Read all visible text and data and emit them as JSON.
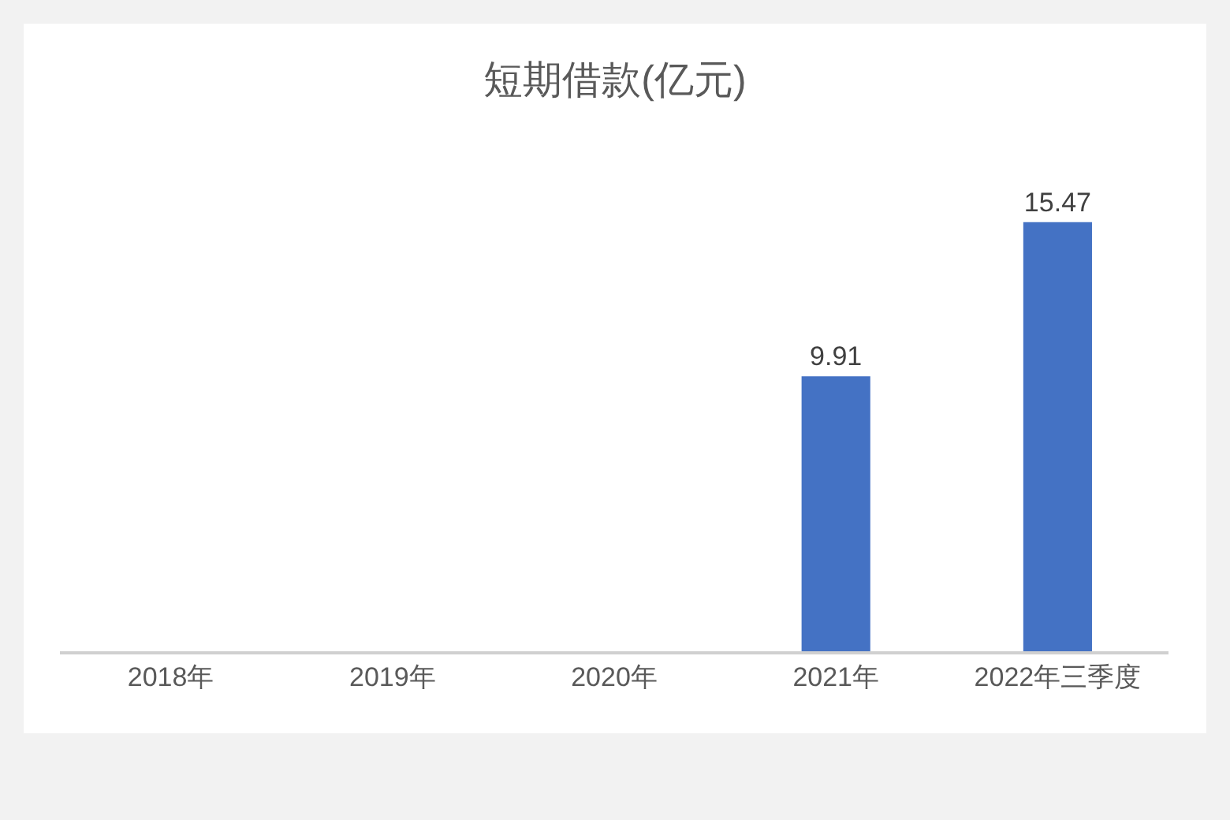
{
  "chart_data": {
    "type": "bar",
    "title": "短期借款(亿元)",
    "categories": [
      "2018年",
      "2019年",
      "2020年",
      "2021年",
      "2022年三季度"
    ],
    "values": [
      null,
      null,
      null,
      9.91,
      15.47
    ],
    "color": "#4472c4",
    "data_labels": true,
    "legend": false,
    "tick_labels": "x"
  }
}
